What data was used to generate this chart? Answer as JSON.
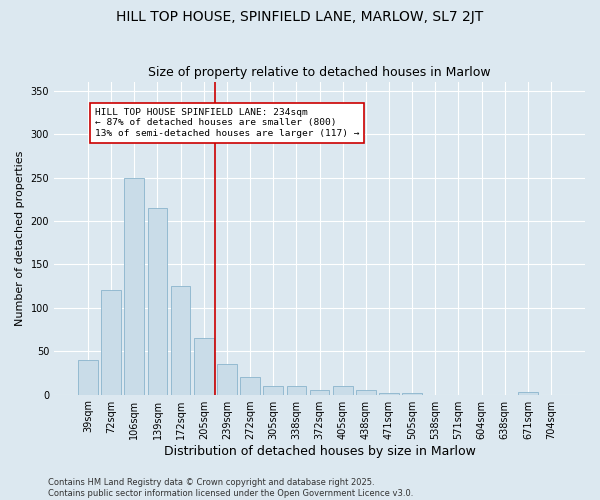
{
  "title_line1": "HILL TOP HOUSE, SPINFIELD LANE, MARLOW, SL7 2JT",
  "title_line2": "Size of property relative to detached houses in Marlow",
  "xlabel": "Distribution of detached houses by size in Marlow",
  "ylabel": "Number of detached properties",
  "categories": [
    "39sqm",
    "72sqm",
    "106sqm",
    "139sqm",
    "172sqm",
    "205sqm",
    "239sqm",
    "272sqm",
    "305sqm",
    "338sqm",
    "372sqm",
    "405sqm",
    "438sqm",
    "471sqm",
    "505sqm",
    "538sqm",
    "571sqm",
    "604sqm",
    "638sqm",
    "671sqm",
    "704sqm"
  ],
  "values": [
    40,
    120,
    250,
    215,
    125,
    65,
    35,
    20,
    10,
    10,
    5,
    10,
    5,
    2,
    2,
    0,
    0,
    0,
    0,
    3,
    0
  ],
  "bar_color": "#c9dce8",
  "bar_edgecolor": "#8ab4cc",
  "bar_linewidth": 0.6,
  "vline_color": "#cc0000",
  "annotation_text": "HILL TOP HOUSE SPINFIELD LANE: 234sqm\n← 87% of detached houses are smaller (800)\n13% of semi-detached houses are larger (117) →",
  "annotation_box_facecolor": "white",
  "annotation_box_edgecolor": "#cc0000",
  "annotation_fontsize": 6.8,
  "ylim": [
    0,
    360
  ],
  "yticks": [
    0,
    50,
    100,
    150,
    200,
    250,
    300,
    350
  ],
  "bg_color": "#dce8f0",
  "plot_bg_color": "#dce8f0",
  "grid_color": "white",
  "title_fontsize": 10,
  "subtitle_fontsize": 9,
  "xlabel_fontsize": 9,
  "ylabel_fontsize": 8,
  "tick_fontsize": 7,
  "footer_text": "Contains HM Land Registry data © Crown copyright and database right 2025.\nContains public sector information licensed under the Open Government Licence v3.0."
}
